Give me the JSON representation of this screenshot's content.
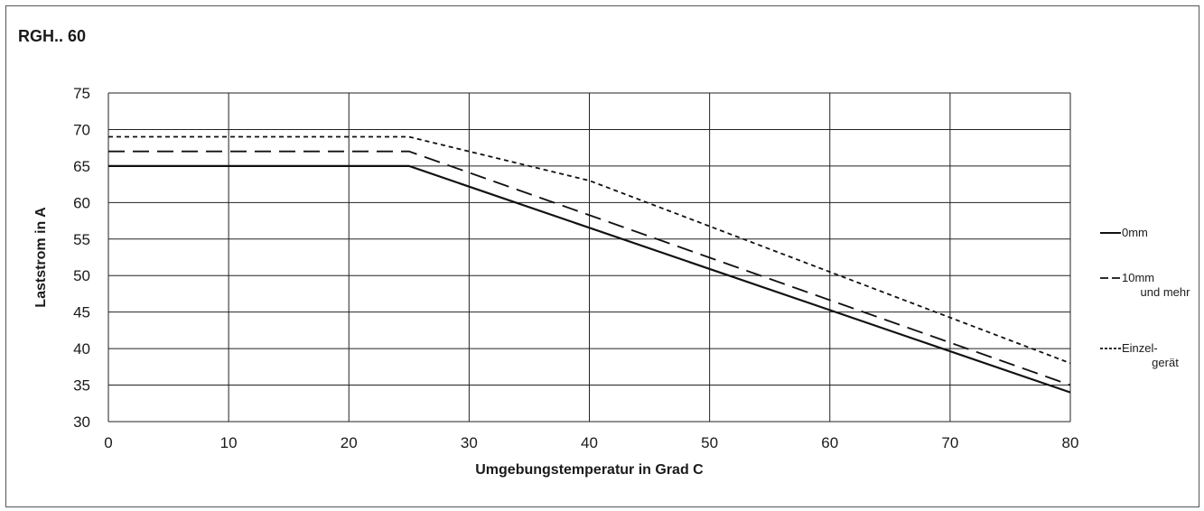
{
  "chart_data": {
    "type": "line",
    "title": "RGH.. 60",
    "xlabel": "Umgebungstemperatur in Grad C",
    "ylabel": "Laststrom in A",
    "xlim": [
      0,
      80
    ],
    "ylim": [
      30,
      75
    ],
    "xticks": [
      0,
      10,
      20,
      30,
      40,
      50,
      60,
      70,
      80
    ],
    "yticks": [
      30,
      35,
      40,
      45,
      50,
      55,
      60,
      65,
      70,
      75
    ],
    "grid": true,
    "legend_position": "right",
    "series": [
      {
        "name": "0mm",
        "style": "solid",
        "x": [
          0,
          25,
          80
        ],
        "y": [
          65,
          65,
          34
        ]
      },
      {
        "name": "10mm und mehr",
        "legend_lines": [
          "10mm",
          "und mehr"
        ],
        "style": "dashed",
        "x": [
          0,
          25,
          80
        ],
        "y": [
          67,
          67,
          35
        ]
      },
      {
        "name": "Einzelgerät",
        "legend_lines": [
          "Einzel-",
          "gerät"
        ],
        "style": "dotted",
        "x": [
          0,
          25,
          40,
          80
        ],
        "y": [
          69,
          69,
          63,
          38
        ]
      }
    ],
    "colors": {
      "line": "#111111",
      "grid": "#222222"
    }
  }
}
